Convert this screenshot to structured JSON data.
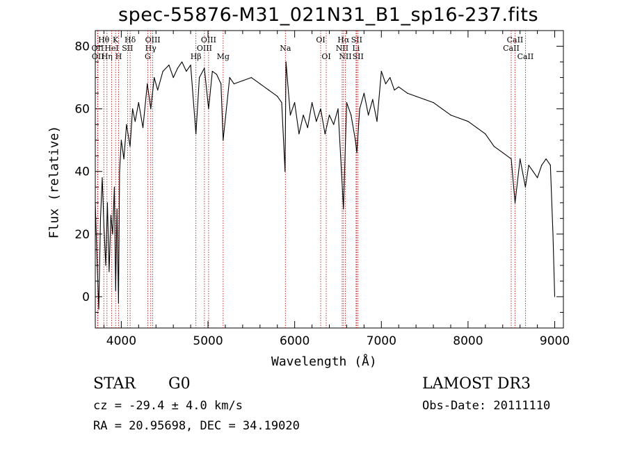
{
  "chart_data": {
    "type": "line",
    "title": "spec-55876-M31_021N31_B1_sp16-237.fits",
    "xlabel": "Wavelength (Å)",
    "ylabel": "Flux (relative)",
    "xlim": [
      3700,
      9100
    ],
    "ylim": [
      -10,
      85
    ],
    "xticks": [
      4000,
      5000,
      6000,
      7000,
      8000,
      9000
    ],
    "yticks": [
      0,
      20,
      40,
      60,
      80
    ],
    "grid": false,
    "series": [
      {
        "name": "flux",
        "x": [
          3700,
          3720,
          3740,
          3760,
          3780,
          3800,
          3820,
          3840,
          3860,
          3880,
          3900,
          3920,
          3935,
          3950,
          3968,
          3980,
          4000,
          4030,
          4060,
          4101,
          4130,
          4160,
          4200,
          4250,
          4300,
          4340,
          4380,
          4420,
          4480,
          4550,
          4600,
          4650,
          4700,
          4750,
          4800,
          4861,
          4900,
          4958,
          5007,
          5050,
          5100,
          5150,
          5175,
          5250,
          5300,
          5400,
          5500,
          5600,
          5700,
          5800,
          5850,
          5889,
          5900,
          5950,
          6000,
          6050,
          6100,
          6150,
          6200,
          6250,
          6300,
          6350,
          6400,
          6450,
          6500,
          6530,
          6563,
          6600,
          6650,
          6700,
          6717,
          6750,
          6800,
          6850,
          6900,
          6950,
          7000,
          7050,
          7100,
          7150,
          7200,
          7300,
          7400,
          7500,
          7600,
          7700,
          7800,
          7900,
          8000,
          8100,
          8200,
          8300,
          8400,
          8498,
          8542,
          8600,
          8662,
          8700,
          8750,
          8800,
          8850,
          8900,
          8950,
          8980,
          9000
        ],
        "y": [
          30,
          12,
          -4,
          25,
          38,
          22,
          10,
          30,
          8,
          26,
          20,
          35,
          2,
          28,
          -2,
          40,
          50,
          44,
          55,
          48,
          60,
          56,
          62,
          54,
          68,
          60,
          70,
          66,
          72,
          74,
          70,
          73,
          75,
          72,
          74,
          52,
          70,
          73,
          60,
          72,
          71,
          68,
          50,
          70,
          68,
          69,
          70,
          68,
          66,
          64,
          62,
          40,
          75,
          58,
          62,
          52,
          58,
          54,
          62,
          56,
          60,
          52,
          58,
          55,
          60,
          45,
          28,
          62,
          58,
          50,
          46,
          60,
          65,
          58,
          63,
          56,
          72,
          68,
          70,
          66,
          67,
          65,
          64,
          63,
          62,
          60,
          58,
          57,
          56,
          54,
          52,
          48,
          46,
          44,
          30,
          44,
          35,
          42,
          40,
          38,
          42,
          44,
          42,
          20,
          0
        ]
      }
    ],
    "lines": [
      {
        "label": "Hθ",
        "x": 3798,
        "row": 1
      },
      {
        "label": "OII",
        "x": 3727,
        "row": 2
      },
      {
        "label": "OII",
        "x": 3730,
        "row": 3
      },
      {
        "label": "K",
        "x": 3934,
        "row": 1
      },
      {
        "label": "HeI",
        "x": 3889,
        "row": 2
      },
      {
        "label": "Hη",
        "x": 3835,
        "row": 3
      },
      {
        "label": "H",
        "x": 3969,
        "row": 3
      },
      {
        "label": "Hδ",
        "x": 4102,
        "row": 1
      },
      {
        "label": "SII",
        "x": 4072,
        "row": 2
      },
      {
        "label": "OIII",
        "x": 4363,
        "row": 1
      },
      {
        "label": "Hγ",
        "x": 4340,
        "row": 2
      },
      {
        "label": "G",
        "x": 4305,
        "row": 3
      },
      {
        "label": "OIII",
        "x": 5007,
        "row": 1
      },
      {
        "label": "OIII",
        "x": 4959,
        "row": 2
      },
      {
        "label": "Hβ",
        "x": 4861,
        "row": 3
      },
      {
        "label": "Mg",
        "x": 5175,
        "row": 3
      },
      {
        "label": "Na",
        "x": 5893,
        "row": 2
      },
      {
        "label": "OI",
        "x": 6300,
        "row": 1
      },
      {
        "label": "OI",
        "x": 6364,
        "row": 3
      },
      {
        "label": "Hα",
        "x": 6563,
        "row": 1
      },
      {
        "label": "SII",
        "x": 6716,
        "row": 1
      },
      {
        "label": "NII",
        "x": 6548,
        "row": 2
      },
      {
        "label": "Li",
        "x": 6708,
        "row": 2
      },
      {
        "label": "NII",
        "x": 6584,
        "row": 3
      },
      {
        "label": "SII",
        "x": 6731,
        "row": 3
      },
      {
        "label": "CaII",
        "x": 8542,
        "row": 1
      },
      {
        "label": "CaII",
        "x": 8498,
        "row": 2
      },
      {
        "label": "CaII",
        "x": 8662,
        "row": 3
      }
    ]
  },
  "info": {
    "class_label": "STAR",
    "subclass_label": "G0",
    "survey_label": "LAMOST DR3",
    "cz_text": "cz = -29.4 ± 4.0 km/s",
    "obsdate_text": "Obs-Date: 20111110",
    "radec_text": "RA =  20.95698, DEC =  34.19020"
  }
}
